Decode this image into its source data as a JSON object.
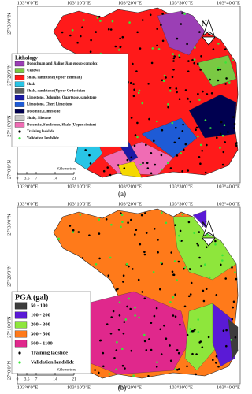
{
  "panels": [
    {
      "caption": "(a)",
      "top_labels": [
        "103°0'0\"E",
        "103°10'0\"E",
        "103°20'0\"E",
        "103°30'0\"E",
        "103°40'0\"E"
      ],
      "bottom_labels": [
        "103°0'0\"E",
        "103°10'0\"E",
        "103°20'0\"E",
        "103°30'0\"E",
        "103°40'0\"E"
      ],
      "left_labels": [
        "27°30'0\"N",
        "27°20'0\"N",
        "27°10'0\"N",
        "27°0'0\"N"
      ],
      "legend": {
        "title": "Lithology",
        "items": [
          {
            "label": "Dongchuan and Jialing Jian group-complex",
            "color": "#9b3fb5"
          },
          {
            "label": "Ukaowa",
            "color": "#7ac943"
          },
          {
            "label": "Shale, sandstone (Upper Permian)",
            "color": "#ff1a1a"
          },
          {
            "label": "Shale",
            "color": "#29c5e6"
          },
          {
            "label": "Shale, sandstone (Upper Ordovician",
            "color": "#5b5b5b"
          },
          {
            "label": "Limestone, Dolomite, Quartzose, sandstone",
            "color": "#1a1aa6"
          },
          {
            "label": "Limestone, Chert Limestone",
            "color": "#1e5bd6"
          },
          {
            "label": "Dolomite, Limestone",
            "color": "#000050"
          },
          {
            "label": "Shale, Siltstone",
            "color": "#c8c8c8"
          },
          {
            "label": "Dolomite, Sandstone, Shale (Upper simian)",
            "color": "#f06cb4"
          },
          {
            "label": "Training ladslide",
            "color": "#000000"
          },
          {
            "label": "Validation landslide",
            "color": "#39e639"
          }
        ]
      },
      "scale": {
        "ticks": [
          0,
          3.5,
          7,
          14,
          21
        ],
        "unit": "Kilometers"
      }
    },
    {
      "caption": "(b)",
      "top_labels": [
        "103°0'0\"E",
        "103°10'0\"E",
        "103°20'0\"E",
        "103°30'0\"E",
        "103°40'0\"E"
      ],
      "bottom_labels": [
        "103°0'0\"E",
        "103°10'0\"E",
        "103°20'0\"E",
        "103°30'0\"E",
        "103°40'0\"E"
      ],
      "left_labels": [
        "27°30'0\"N",
        "27°20'0\"N",
        "27°10'0\"N",
        "27°0'0\"N"
      ],
      "legend": {
        "title": "PGA (gal)",
        "items": [
          {
            "label": "50 - 100",
            "color": "#3c3c3c"
          },
          {
            "label": "100 - 200",
            "color": "#5a1ad6"
          },
          {
            "label": "200 - 300",
            "color": "#8ee63c"
          },
          {
            "label": "300 - 500",
            "color": "#ff7a1a"
          },
          {
            "label": "500 - 1100",
            "color": "#e0288c"
          },
          {
            "label": "Training ladslide",
            "color": "#000000"
          },
          {
            "label": "Validation landslide",
            "color": "#39e639"
          }
        ]
      },
      "scale": {
        "ticks": [
          0,
          3.5,
          7,
          14,
          21
        ],
        "unit": "Kilometers"
      }
    }
  ]
}
